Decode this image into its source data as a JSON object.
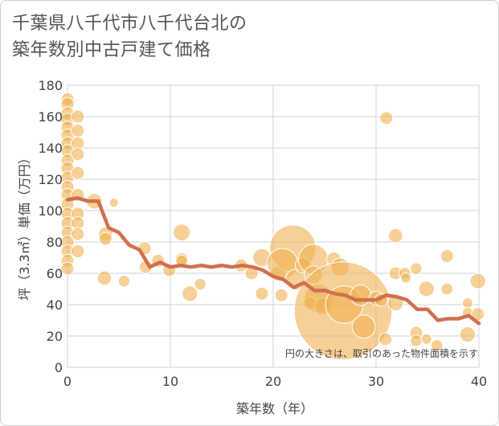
{
  "title_lines": [
    "千葉県八千代市八千代台北の",
    "築年数別中古戸建て価格"
  ],
  "chart_data": {
    "type": "scatter",
    "title": "千葉県八千代市八千代台北の築年数別中古戸建て価格",
    "xlabel": "築年数（年）",
    "ylabel": "坪（3.3㎡）単価（万円）",
    "xlim": [
      0,
      40
    ],
    "ylim": [
      0,
      180
    ],
    "xticks": [
      0,
      10,
      20,
      30,
      40
    ],
    "yticks": [
      0,
      20,
      40,
      60,
      80,
      100,
      120,
      140,
      160,
      180
    ],
    "note": "円の大きさは、取引のあった物件面積を示す",
    "colors": {
      "bubble": "#f0b050",
      "line": "#d07050",
      "grid": "#c8d4df"
    },
    "points": [
      {
        "x": 0,
        "y": 171,
        "s": 1
      },
      {
        "x": 0,
        "y": 168,
        "s": 1
      },
      {
        "x": 0,
        "y": 162,
        "s": 1
      },
      {
        "x": 0,
        "y": 158,
        "s": 1
      },
      {
        "x": 0,
        "y": 153,
        "s": 1
      },
      {
        "x": 0,
        "y": 148,
        "s": 1
      },
      {
        "x": 0,
        "y": 143,
        "s": 1
      },
      {
        "x": 0,
        "y": 138,
        "s": 1
      },
      {
        "x": 0,
        "y": 132,
        "s": 1
      },
      {
        "x": 0,
        "y": 127,
        "s": 1
      },
      {
        "x": 0,
        "y": 121,
        "s": 1
      },
      {
        "x": 0,
        "y": 115,
        "s": 1
      },
      {
        "x": 0,
        "y": 110,
        "s": 1
      },
      {
        "x": 0,
        "y": 104,
        "s": 1
      },
      {
        "x": 0,
        "y": 98,
        "s": 1
      },
      {
        "x": 0,
        "y": 92,
        "s": 1
      },
      {
        "x": 0,
        "y": 86,
        "s": 1
      },
      {
        "x": 0,
        "y": 80,
        "s": 1
      },
      {
        "x": 0,
        "y": 74,
        "s": 1
      },
      {
        "x": 0,
        "y": 68,
        "s": 1
      },
      {
        "x": 0,
        "y": 63,
        "s": 1
      },
      {
        "x": 1,
        "y": 160,
        "s": 1
      },
      {
        "x": 1,
        "y": 151,
        "s": 1
      },
      {
        "x": 1,
        "y": 143,
        "s": 1
      },
      {
        "x": 1,
        "y": 136,
        "s": 1
      },
      {
        "x": 1,
        "y": 124,
        "s": 1
      },
      {
        "x": 1,
        "y": 110,
        "s": 1
      },
      {
        "x": 1,
        "y": 98,
        "s": 1
      },
      {
        "x": 1,
        "y": 92,
        "s": 1
      },
      {
        "x": 1,
        "y": 85,
        "s": 1
      },
      {
        "x": 1,
        "y": 74,
        "s": 1
      },
      {
        "x": 2.6,
        "y": 106,
        "s": 1.2
      },
      {
        "x": 4.5,
        "y": 105,
        "s": 0.7
      },
      {
        "x": 3.7,
        "y": 85,
        "s": 1.1
      },
      {
        "x": 3.7,
        "y": 82,
        "s": 1
      },
      {
        "x": 3.6,
        "y": 57,
        "s": 1.1
      },
      {
        "x": 5.5,
        "y": 55,
        "s": 0.9
      },
      {
        "x": 7.5,
        "y": 76,
        "s": 1
      },
      {
        "x": 7.6,
        "y": 64,
        "s": 1
      },
      {
        "x": 8.8,
        "y": 68,
        "s": 1
      },
      {
        "x": 9.9,
        "y": 62,
        "s": 1
      },
      {
        "x": 11.1,
        "y": 86,
        "s": 1.3
      },
      {
        "x": 11.1,
        "y": 69,
        "s": 1
      },
      {
        "x": 11.1,
        "y": 68,
        "s": 0.9
      },
      {
        "x": 12.9,
        "y": 53,
        "s": 0.9
      },
      {
        "x": 11.9,
        "y": 47,
        "s": 1.2
      },
      {
        "x": 16.9,
        "y": 65,
        "s": 1
      },
      {
        "x": 17.9,
        "y": 60,
        "s": 1
      },
      {
        "x": 18.9,
        "y": 70,
        "s": 1.4
      },
      {
        "x": 18.9,
        "y": 47,
        "s": 1
      },
      {
        "x": 20.8,
        "y": 46,
        "s": 1
      },
      {
        "x": 20.5,
        "y": 60,
        "s": 1.2
      },
      {
        "x": 21.9,
        "y": 76,
        "s": 3.6
      },
      {
        "x": 20.9,
        "y": 66,
        "s": 2.4
      },
      {
        "x": 22.2,
        "y": 56,
        "s": 1.6
      },
      {
        "x": 22.9,
        "y": 65,
        "s": 1.2
      },
      {
        "x": 23.9,
        "y": 69,
        "s": 2.3
      },
      {
        "x": 23.9,
        "y": 59,
        "s": 1.4
      },
      {
        "x": 24.4,
        "y": 44,
        "s": 2.2
      },
      {
        "x": 23.6,
        "y": 41,
        "s": 1
      },
      {
        "x": 24.8,
        "y": 39,
        "s": 1.3
      },
      {
        "x": 25.9,
        "y": 69,
        "s": 1.1
      },
      {
        "x": 26.5,
        "y": 64,
        "s": 1.4
      },
      {
        "x": 26.8,
        "y": 36,
        "s": 7.6
      },
      {
        "x": 26.9,
        "y": 40,
        "s": 2.9
      },
      {
        "x": 28.5,
        "y": 46,
        "s": 1.6
      },
      {
        "x": 28.8,
        "y": 26,
        "s": 1.8
      },
      {
        "x": 30.0,
        "y": 44,
        "s": 1.1
      },
      {
        "x": 30.5,
        "y": 43,
        "s": 1
      },
      {
        "x": 31.0,
        "y": 159,
        "s": 1
      },
      {
        "x": 30.9,
        "y": 18,
        "s": 1
      },
      {
        "x": 31.9,
        "y": 84,
        "s": 1.1
      },
      {
        "x": 31.9,
        "y": 60,
        "s": 1
      },
      {
        "x": 31.9,
        "y": 41,
        "s": 1.2
      },
      {
        "x": 32.8,
        "y": 60,
        "s": 0.9
      },
      {
        "x": 32.9,
        "y": 57,
        "s": 0.8
      },
      {
        "x": 33.9,
        "y": 63,
        "s": 0.9
      },
      {
        "x": 33.9,
        "y": 22,
        "s": 1
      },
      {
        "x": 33.9,
        "y": 17,
        "s": 0.9
      },
      {
        "x": 34.9,
        "y": 50,
        "s": 1.2
      },
      {
        "x": 34.9,
        "y": 18,
        "s": 0.8
      },
      {
        "x": 35.9,
        "y": 14,
        "s": 0.9
      },
      {
        "x": 36.9,
        "y": 71,
        "s": 1
      },
      {
        "x": 36.9,
        "y": 50,
        "s": 0.9
      },
      {
        "x": 38.9,
        "y": 41,
        "s": 0.8
      },
      {
        "x": 38.9,
        "y": 35,
        "s": 0.8
      },
      {
        "x": 38.9,
        "y": 21,
        "s": 1.2
      },
      {
        "x": 39.9,
        "y": 55,
        "s": 1.2
      },
      {
        "x": 39.9,
        "y": 34,
        "s": 1
      }
    ],
    "trend": {
      "x": [
        0,
        1,
        2,
        3,
        4,
        5,
        6,
        7,
        8,
        9,
        10,
        11,
        12,
        13,
        14,
        15,
        16,
        17,
        18,
        19,
        20,
        21,
        22,
        23,
        24,
        25,
        26,
        27,
        28,
        29,
        30,
        31,
        32,
        33,
        34,
        35,
        36,
        37,
        38,
        39,
        40
      ],
      "y": [
        107,
        108,
        106,
        106,
        89,
        86,
        78,
        75,
        64,
        67,
        64,
        65,
        64,
        65,
        64,
        65,
        64,
        65,
        64,
        62,
        58,
        56,
        51,
        54,
        49,
        49,
        47,
        46,
        43,
        43,
        43,
        46,
        45,
        43,
        37,
        37,
        30,
        31,
        31,
        33,
        28
      ]
    }
  }
}
